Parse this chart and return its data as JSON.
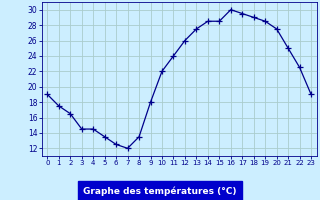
{
  "x": [
    0,
    1,
    2,
    3,
    4,
    5,
    6,
    7,
    8,
    9,
    10,
    11,
    12,
    13,
    14,
    15,
    16,
    17,
    18,
    19,
    20,
    21,
    22,
    23
  ],
  "y": [
    19.0,
    17.5,
    16.5,
    14.5,
    14.5,
    13.5,
    12.5,
    12.0,
    13.5,
    18.0,
    22.0,
    24.0,
    26.0,
    27.5,
    28.5,
    28.5,
    30.0,
    29.5,
    29.0,
    28.5,
    27.5,
    25.0,
    22.5,
    19.0
  ],
  "line_color": "#00008b",
  "marker": "+",
  "marker_size": 4,
  "bg_color": "#cceeff",
  "grid_color": "#aacccc",
  "tick_color": "#00008b",
  "xlabel": "Graphe des températures (°C)",
  "xlabel_bg": "#0000cc",
  "xlabel_text_color": "#ffffff",
  "ylim": [
    11,
    31
  ],
  "yticks": [
    12,
    14,
    16,
    18,
    20,
    22,
    24,
    26,
    28,
    30
  ],
  "xlim": [
    -0.5,
    23.5
  ],
  "xticks": [
    0,
    1,
    2,
    3,
    4,
    5,
    6,
    7,
    8,
    9,
    10,
    11,
    12,
    13,
    14,
    15,
    16,
    17,
    18,
    19,
    20,
    21,
    22,
    23
  ],
  "xtick_labels": [
    "0",
    "1",
    "2",
    "3",
    "4",
    "5",
    "6",
    "7",
    "8",
    "9",
    "10",
    "11",
    "12",
    "13",
    "14",
    "15",
    "16",
    "17",
    "18",
    "19",
    "20",
    "21",
    "22",
    "23"
  ]
}
